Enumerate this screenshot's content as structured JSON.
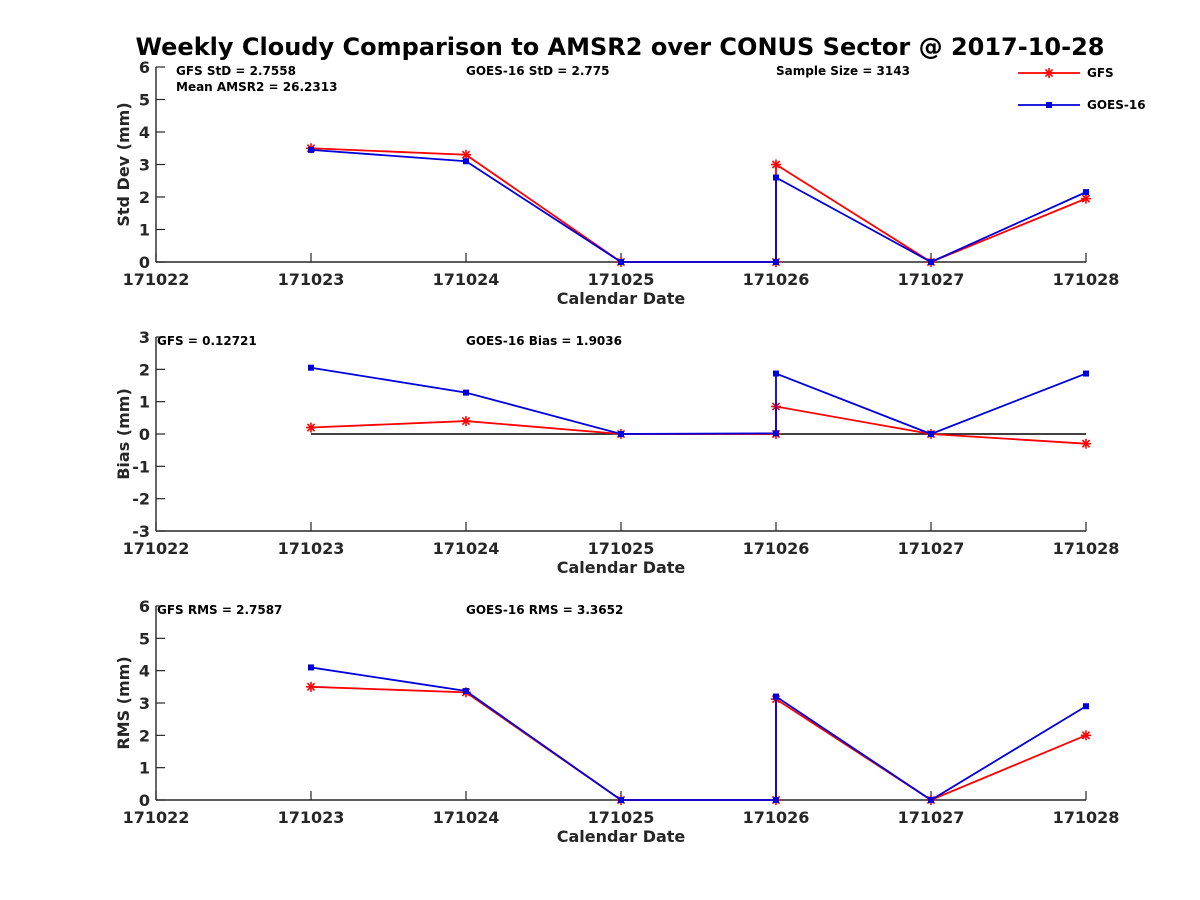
{
  "chart_data": {
    "title": "Weekly Cloudy Comparison to AMSR2 over CONUS Sector @ 2017-10-28",
    "legend": {
      "placement": "top-right",
      "entries": [
        "GFS",
        "GOES-16"
      ]
    },
    "colors": {
      "GFS": "#ff0000",
      "GOES-16": "#0000dd",
      "reference_line": "#000000",
      "axis": "#262626"
    },
    "panels": [
      {
        "type": "line",
        "ylabel": "Std Dev (mm)",
        "xlabel": "Calendar Date",
        "ylim": [
          0,
          6
        ],
        "yticks": [
          "0",
          "1",
          "2",
          "3",
          "4",
          "5",
          "6"
        ],
        "xlim": [
          0,
          6
        ],
        "xticks": [
          "171022",
          "171023",
          "171024",
          "171025",
          "171026",
          "171027",
          "171028"
        ],
        "annotations": [
          "GFS StD = 2.7558",
          "GOES-16 StD = 2.775",
          "Sample Size = 3143",
          "Mean AMSR2 = 26.2313"
        ],
        "series": [
          {
            "name": "GFS",
            "x": [
              1,
              2,
              3,
              4,
              4,
              5,
              6
            ],
            "values": [
              3.5,
              3.3,
              0,
              0,
              3.0,
              0,
              1.95
            ]
          },
          {
            "name": "GOES-16",
            "x": [
              1,
              2,
              3,
              4,
              4,
              5,
              6
            ],
            "values": [
              3.45,
              3.1,
              0,
              0,
              2.6,
              0,
              2.15
            ]
          }
        ]
      },
      {
        "type": "line",
        "ylabel": "Bias (mm)",
        "xlabel": "Calendar Date",
        "ylim": [
          -3,
          3
        ],
        "yticks": [
          "-3",
          "-2",
          "-1",
          "0",
          "1",
          "2",
          "3"
        ],
        "xlim": [
          0,
          6
        ],
        "xticks": [
          "171022",
          "171023",
          "171024",
          "171025",
          "171026",
          "171027",
          "171028"
        ],
        "annotations": [
          "GFS = 0.12721",
          "GOES-16 Bias  = 1.9036"
        ],
        "reference_line": {
          "y": 0,
          "x": [
            1,
            6
          ]
        },
        "series": [
          {
            "name": "GFS",
            "x": [
              1,
              2,
              3,
              4,
              4,
              5,
              6
            ],
            "values": [
              0.2,
              0.4,
              0,
              0,
              0.85,
              0,
              -0.3
            ]
          },
          {
            "name": "GOES-16",
            "x": [
              1,
              2,
              3,
              4,
              4,
              5,
              6
            ],
            "values": [
              2.05,
              1.28,
              0,
              0.02,
              1.87,
              0,
              1.87
            ]
          }
        ]
      },
      {
        "type": "line",
        "ylabel": "RMS (mm)",
        "xlabel": "Calendar Date",
        "ylim": [
          0,
          6
        ],
        "yticks": [
          "0",
          "1",
          "2",
          "3",
          "4",
          "5",
          "6"
        ],
        "xlim": [
          0,
          6
        ],
        "xticks": [
          "171022",
          "171023",
          "171024",
          "171025",
          "171026",
          "171027",
          "171028"
        ],
        "annotations": [
          "GFS RMS = 2.7587",
          "GOES-16 RMS = 3.3652"
        ],
        "series": [
          {
            "name": "GFS",
            "x": [
              1,
              2,
              3,
              4,
              4,
              5,
              6
            ],
            "values": [
              3.5,
              3.33,
              0,
              0,
              3.12,
              0,
              2.0
            ]
          },
          {
            "name": "GOES-16",
            "x": [
              1,
              2,
              3,
              4,
              4,
              5,
              6
            ],
            "values": [
              4.1,
              3.37,
              0,
              0,
              3.2,
              0,
              2.9
            ]
          }
        ]
      }
    ]
  }
}
